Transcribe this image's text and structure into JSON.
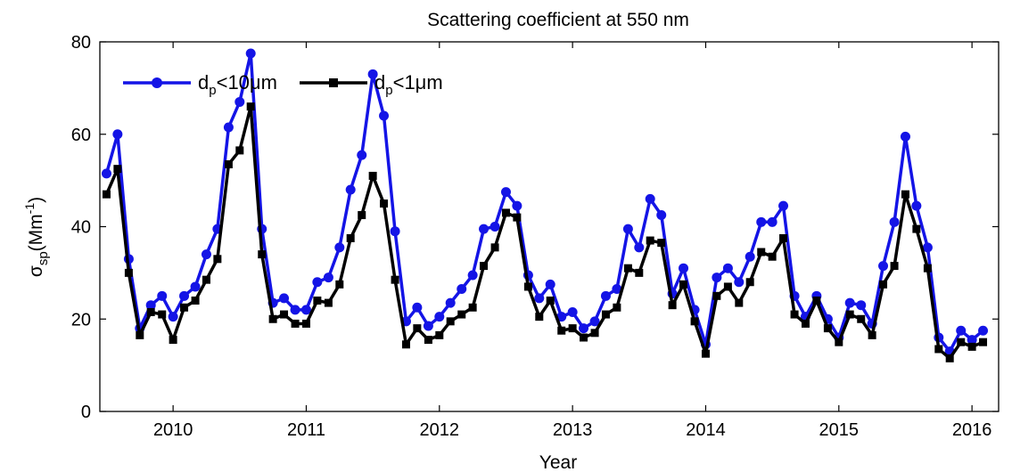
{
  "chart_data": {
    "type": "line",
    "title": "Scattering coefficient at 550 nm",
    "xlabel": "Year",
    "ylabel": {
      "base": "σ",
      "sub": "sp",
      "unit_open": "(Mm",
      "unit_sup": "-1",
      "unit_close": ")"
    },
    "xlim": [
      2009.45,
      2016.2
    ],
    "ylim": [
      0,
      80
    ],
    "xticks": [
      2010,
      2011,
      2012,
      2013,
      2014,
      2015,
      2016
    ],
    "xtick_labels": [
      "2010",
      "2011",
      "2012",
      "2013",
      "2014",
      "2015",
      "2016"
    ],
    "yticks": [
      0,
      20,
      40,
      60,
      80
    ],
    "ytick_labels": [
      "0",
      "20",
      "40",
      "60",
      "80"
    ],
    "grid": false,
    "legend_position": "top-left",
    "x": [
      2009.5,
      2009.583,
      2009.667,
      2009.75,
      2009.833,
      2009.917,
      2010.0,
      2010.083,
      2010.167,
      2010.25,
      2010.333,
      2010.417,
      2010.5,
      2010.583,
      2010.667,
      2010.75,
      2010.833,
      2010.917,
      2011.0,
      2011.083,
      2011.167,
      2011.25,
      2011.333,
      2011.417,
      2011.5,
      2011.583,
      2011.667,
      2011.75,
      2011.833,
      2011.917,
      2012.0,
      2012.083,
      2012.167,
      2012.25,
      2012.333,
      2012.417,
      2012.5,
      2012.583,
      2012.667,
      2012.75,
      2012.833,
      2012.917,
      2013.0,
      2013.083,
      2013.167,
      2013.25,
      2013.333,
      2013.417,
      2013.5,
      2013.583,
      2013.667,
      2013.75,
      2013.833,
      2013.917,
      2014.0,
      2014.083,
      2014.167,
      2014.25,
      2014.333,
      2014.417,
      2014.5,
      2014.583,
      2014.667,
      2014.75,
      2014.833,
      2014.917,
      2015.0,
      2015.083,
      2015.167,
      2015.25,
      2015.333,
      2015.417,
      2015.5,
      2015.583,
      2015.667,
      2015.75,
      2015.833,
      2015.917,
      2016.0,
      2016.083
    ],
    "series": [
      {
        "name_base": "d",
        "name_sub": "p",
        "name_rest": "<10μm",
        "color": "#1414e6",
        "marker": "circle",
        "values": [
          51.5,
          60,
          33,
          18,
          23,
          25,
          20.5,
          25,
          27,
          34,
          39.5,
          61.5,
          67,
          77.5,
          39.5,
          23.5,
          24.5,
          22,
          22,
          28,
          29,
          35.5,
          48,
          55.5,
          73,
          64,
          39,
          19.5,
          22.5,
          18.5,
          20.5,
          23.5,
          26.5,
          29.5,
          39.5,
          40,
          47.5,
          44.5,
          29.5,
          24.5,
          27.5,
          20.5,
          21.5,
          18,
          19.5,
          25,
          26.5,
          39.5,
          35.5,
          46,
          42.5,
          25.5,
          31,
          22,
          14.5,
          29,
          31,
          28,
          33.5,
          41,
          41,
          44.5,
          25,
          20.5,
          25,
          20,
          16,
          23.5,
          23,
          19,
          31.5,
          41,
          59.5,
          44.5,
          35.5,
          16,
          13,
          17.5,
          15.5,
          17.5
        ]
      },
      {
        "name_base": "d",
        "name_sub": "p",
        "name_rest": "<1μm",
        "color": "#000000",
        "marker": "square",
        "values": [
          47,
          52.5,
          30,
          16.5,
          21.5,
          21,
          15.5,
          22.5,
          24,
          28.5,
          33,
          53.5,
          56.5,
          66,
          34,
          20,
          21,
          19,
          19,
          24,
          23.5,
          27.5,
          37.5,
          42.5,
          51,
          45,
          28.5,
          14.5,
          18,
          15.5,
          16.5,
          19.5,
          21,
          22.5,
          31.5,
          35.5,
          43,
          42,
          27,
          20.5,
          24,
          17.5,
          18,
          16,
          17,
          21,
          22.5,
          31,
          30,
          37,
          36.5,
          23,
          27.5,
          19.5,
          12.5,
          25,
          27,
          23.5,
          28,
          34.5,
          33.5,
          37.5,
          21,
          19,
          24,
          18,
          15,
          21,
          20,
          16.5,
          27.5,
          31.5,
          47,
          39.5,
          31,
          13.5,
          11.5,
          15,
          14,
          15
        ]
      }
    ]
  }
}
